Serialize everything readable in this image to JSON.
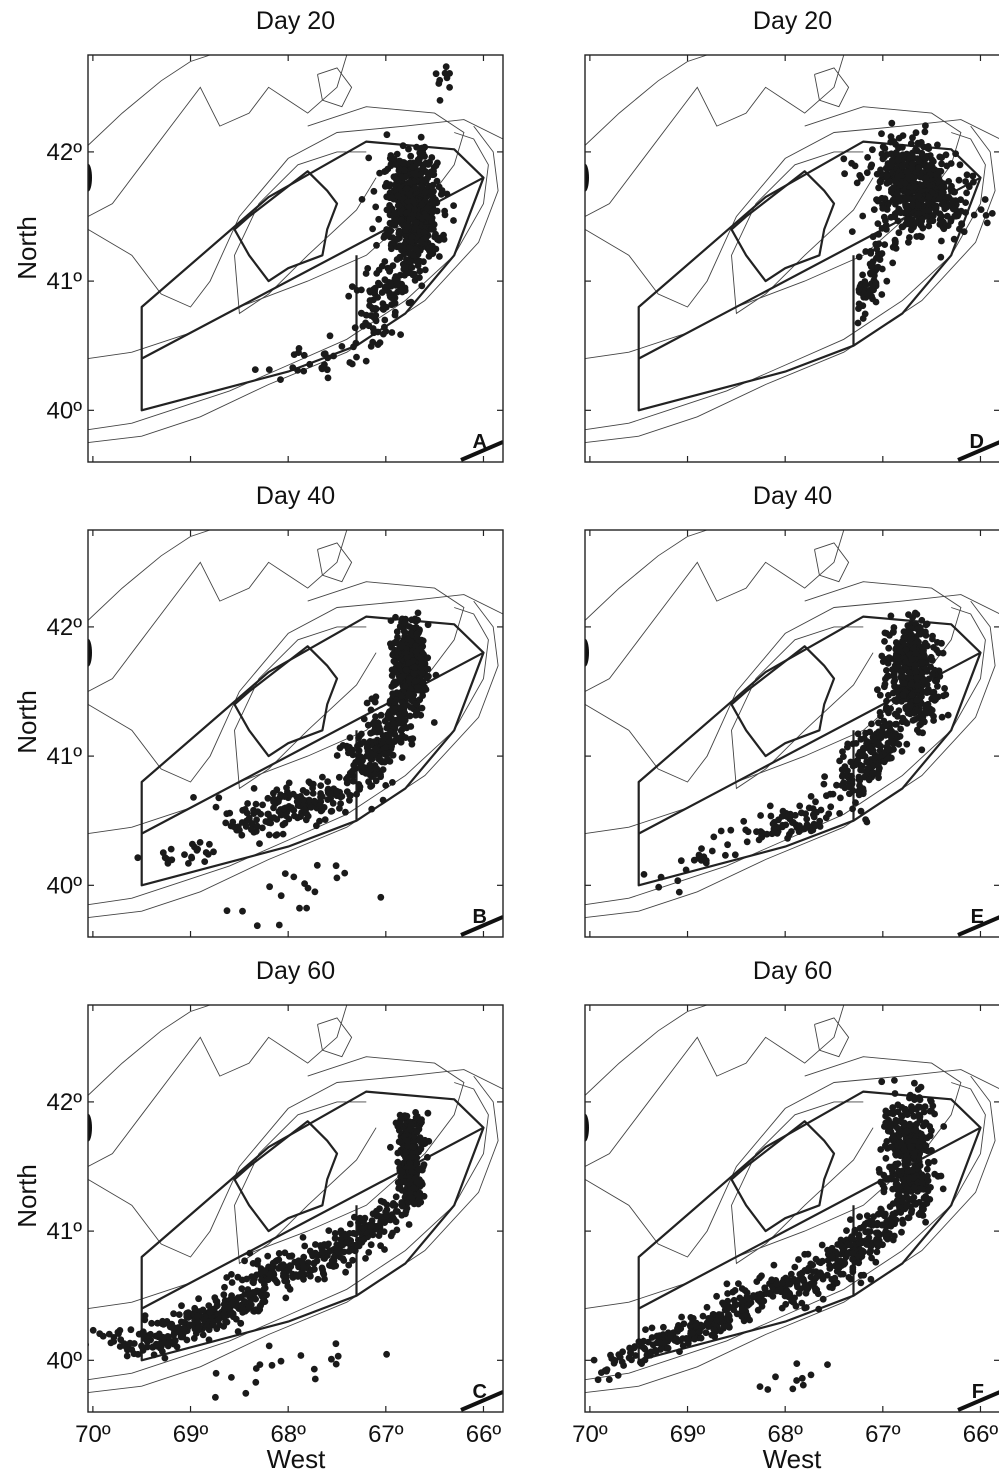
{
  "figure": {
    "x_axis_title": "West",
    "y_axis_title": "North",
    "x_ticks": [
      70,
      69,
      68,
      67,
      66
    ],
    "y_ticks": [
      40,
      41,
      42
    ],
    "x_tick_labels": [
      "70º",
      "69º",
      "68º",
      "67º",
      "66º"
    ],
    "y_tick_labels": [
      "40º",
      "41º",
      "42º"
    ]
  },
  "panels": [
    {
      "id": "A",
      "title": "Day 20",
      "letter": "A",
      "row": 0,
      "col": 0
    },
    {
      "id": "D",
      "title": "Day 20",
      "letter": "D",
      "row": 0,
      "col": 1
    },
    {
      "id": "B",
      "title": "Day 40",
      "letter": "B",
      "row": 1,
      "col": 0
    },
    {
      "id": "E",
      "title": "Day 40",
      "letter": "E",
      "row": 1,
      "col": 1
    },
    {
      "id": "C",
      "title": "Day 60",
      "letter": "C",
      "row": 2,
      "col": 0
    },
    {
      "id": "F",
      "title": "Day 60",
      "letter": "F",
      "row": 2,
      "col": 1
    }
  ],
  "map_extent": {
    "lon_west": 70.05,
    "lon_east": 65.8,
    "lat_south": 39.6,
    "lat_north": 42.75
  },
  "closure_regions": {
    "outer_polygon": [
      [
        69.5,
        40.0
      ],
      [
        69.5,
        40.8
      ],
      [
        68.2,
        41.65
      ],
      [
        67.2,
        42.08
      ],
      [
        66.3,
        42.02
      ],
      [
        66.0,
        41.8
      ],
      [
        66.3,
        41.2
      ],
      [
        66.8,
        40.75
      ],
      [
        67.3,
        40.5
      ],
      [
        68.0,
        40.3
      ],
      [
        69.5,
        40.0
      ]
    ],
    "dividers": [
      [
        [
          69.5,
          40.4
        ],
        [
          66.0,
          41.8
        ]
      ],
      [
        [
          67.3,
          40.5
        ],
        [
          67.3,
          41.2
        ]
      ]
    ],
    "inner_closed_area": [
      [
        68.4,
        41.5
      ],
      [
        67.8,
        41.85
      ],
      [
        67.6,
        41.7
      ],
      [
        67.5,
        41.6
      ],
      [
        67.6,
        41.4
      ],
      [
        67.65,
        41.2
      ],
      [
        68.0,
        41.1
      ],
      [
        68.2,
        41.0
      ],
      [
        68.4,
        41.2
      ],
      [
        68.55,
        41.4
      ],
      [
        68.4,
        41.5
      ]
    ]
  },
  "colors": {
    "points": "#1a1a1a",
    "lines": "#222222",
    "contours": "#444444"
  }
}
